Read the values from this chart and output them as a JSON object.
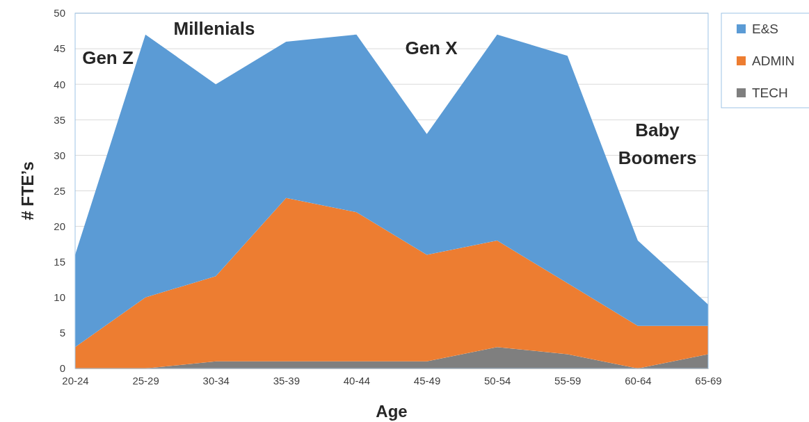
{
  "chart_data": {
    "type": "area",
    "stacked": true,
    "xlabel": "Age",
    "ylabel": "# FTE’s",
    "categories": [
      "20-24",
      "25-29",
      "30-34",
      "35-39",
      "40-44",
      "45-49",
      "50-54",
      "55-59",
      "60-64",
      "65-69"
    ],
    "series": [
      {
        "name": "TECH",
        "color": "#7f7f7f",
        "values": [
          0,
          0,
          1,
          1,
          1,
          1,
          3,
          2,
          0,
          2
        ]
      },
      {
        "name": "ADMIN",
        "color": "#ed7d31",
        "values": [
          3,
          10,
          12,
          23,
          21,
          15,
          15,
          10,
          6,
          4
        ]
      },
      {
        "name": "E&S",
        "color": "#5b9bd5",
        "values": [
          13,
          37,
          27,
          22,
          25,
          17,
          29,
          32,
          12,
          3
        ]
      }
    ],
    "ylim": [
      0,
      50
    ],
    "yticks": [
      0,
      5,
      10,
      15,
      20,
      25,
      30,
      35,
      40,
      45,
      50
    ],
    "grid": "y",
    "legend": "top right",
    "annotations": [
      "Gen Z",
      "Millenials",
      "Gen X",
      "Baby Boomers"
    ]
  }
}
